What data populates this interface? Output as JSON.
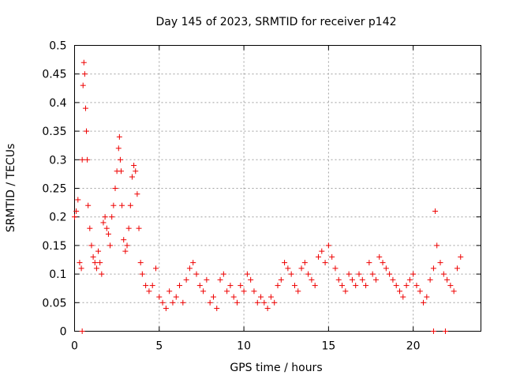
{
  "chart_data": {
    "type": "scatter",
    "title": "Day 145 of 2023, SRMTID for receiver p142",
    "xlabel": "GPS time / hours",
    "ylabel": "SRMTID / TECUs",
    "xlim": [
      0,
      24
    ],
    "ylim": [
      0,
      0.5
    ],
    "xticks": [
      0,
      5,
      10,
      15,
      20
    ],
    "xtick_labels": [
      "0",
      "5",
      "10",
      "15",
      "20"
    ],
    "yticks": [
      0,
      0.05,
      0.1,
      0.15,
      0.2,
      0.25,
      0.3,
      0.35,
      0.4,
      0.45,
      0.5
    ],
    "ytick_labels": [
      "0",
      "0.05",
      "0.1",
      "0.15",
      "0.2",
      "0.25",
      "0.3",
      "0.35",
      "0.4",
      "0.45",
      "0.5"
    ],
    "grid": true,
    "marker": "+",
    "color": "#ee0000",
    "series": [
      {
        "name": "SRMTID",
        "x": [
          0.0,
          0.1,
          0.2,
          0.3,
          0.4,
          0.45,
          0.5,
          0.55,
          0.6,
          0.65,
          0.7,
          0.75,
          0.8,
          0.9,
          1.0,
          1.1,
          1.2,
          1.3,
          1.4,
          1.5,
          1.6,
          1.7,
          1.8,
          1.9,
          2.0,
          2.1,
          2.2,
          2.3,
          2.4,
          2.5,
          2.6,
          2.65,
          2.7,
          2.75,
          2.8,
          2.9,
          3.0,
          3.1,
          3.2,
          3.3,
          3.4,
          3.5,
          3.6,
          3.7,
          3.8,
          3.9,
          4.0,
          4.2,
          4.4,
          4.6,
          4.8,
          5.0,
          5.2,
          5.4,
          5.6,
          5.8,
          6.0,
          6.2,
          6.4,
          6.6,
          6.8,
          7.0,
          7.2,
          7.4,
          7.6,
          7.8,
          8.0,
          8.2,
          8.4,
          8.6,
          8.8,
          9.0,
          9.2,
          9.4,
          9.6,
          9.8,
          10.0,
          10.2,
          10.4,
          10.6,
          10.8,
          11.0,
          11.2,
          11.4,
          11.6,
          11.8,
          12.0,
          12.2,
          12.4,
          12.6,
          12.8,
          13.0,
          13.2,
          13.4,
          13.6,
          13.8,
          14.0,
          14.2,
          14.4,
          14.6,
          14.8,
          15.0,
          15.2,
          15.4,
          15.6,
          15.8,
          16.0,
          16.2,
          16.4,
          16.6,
          16.8,
          17.0,
          17.2,
          17.4,
          17.6,
          17.8,
          18.0,
          18.2,
          18.4,
          18.6,
          18.8,
          19.0,
          19.2,
          19.4,
          19.6,
          19.8,
          20.0,
          20.2,
          20.4,
          20.6,
          20.8,
          21.0,
          21.2,
          21.3,
          21.4,
          21.6,
          21.8,
          22.0,
          22.2,
          22.4,
          22.6,
          22.8
        ],
        "y": [
          0.2,
          0.21,
          0.23,
          0.12,
          0.11,
          0.3,
          0.43,
          0.47,
          0.45,
          0.39,
          0.35,
          0.3,
          0.22,
          0.18,
          0.15,
          0.13,
          0.12,
          0.11,
          0.14,
          0.12,
          0.1,
          0.19,
          0.2,
          0.18,
          0.17,
          0.15,
          0.2,
          0.22,
          0.25,
          0.28,
          0.32,
          0.34,
          0.3,
          0.28,
          0.22,
          0.16,
          0.14,
          0.15,
          0.18,
          0.22,
          0.27,
          0.29,
          0.28,
          0.24,
          0.18,
          0.12,
          0.1,
          0.08,
          0.07,
          0.08,
          0.11,
          0.06,
          0.05,
          0.04,
          0.07,
          0.05,
          0.06,
          0.08,
          0.05,
          0.09,
          0.11,
          0.12,
          0.1,
          0.08,
          0.07,
          0.09,
          0.05,
          0.06,
          0.04,
          0.09,
          0.1,
          0.07,
          0.08,
          0.06,
          0.05,
          0.08,
          0.07,
          0.1,
          0.09,
          0.07,
          0.05,
          0.06,
          0.05,
          0.04,
          0.06,
          0.05,
          0.08,
          0.09,
          0.12,
          0.11,
          0.1,
          0.08,
          0.07,
          0.11,
          0.12,
          0.1,
          0.09,
          0.08,
          0.13,
          0.14,
          0.12,
          0.15,
          0.13,
          0.11,
          0.09,
          0.08,
          0.07,
          0.1,
          0.09,
          0.08,
          0.1,
          0.09,
          0.08,
          0.12,
          0.1,
          0.09,
          0.13,
          0.12,
          0.11,
          0.1,
          0.09,
          0.08,
          0.07,
          0.06,
          0.08,
          0.09,
          0.1,
          0.08,
          0.07,
          0.05,
          0.06,
          0.09,
          0.11,
          0.21,
          0.15,
          0.12,
          0.1,
          0.09,
          0.08,
          0.07,
          0.11,
          0.13
        ]
      },
      {
        "name": "zero-markers",
        "x": [
          0.45,
          21.2,
          21.9
        ],
        "y": [
          0,
          0,
          0
        ]
      }
    ]
  }
}
